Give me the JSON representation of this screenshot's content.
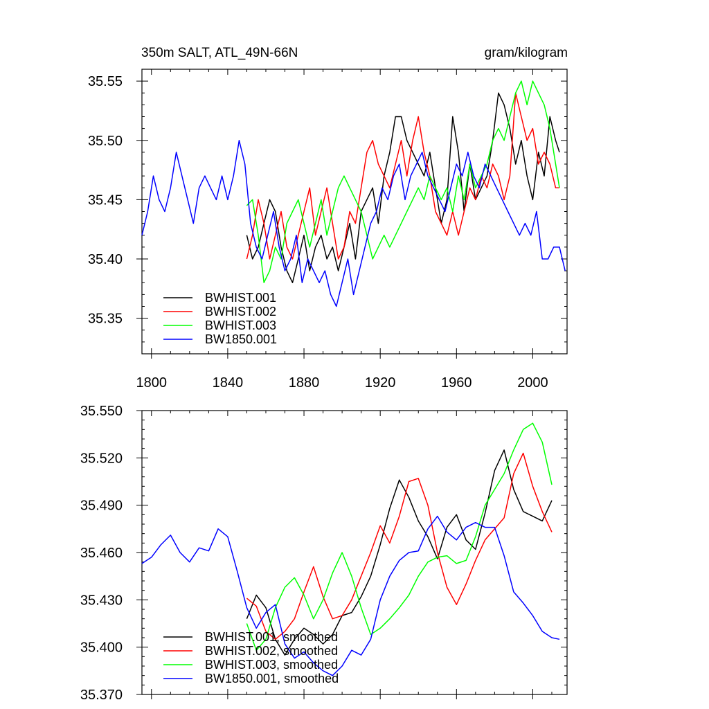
{
  "chart_data": [
    {
      "type": "line",
      "title": "350m SALT, ATL_49N-66N",
      "units": "gram/kilogram",
      "xlim": [
        1795,
        2018
      ],
      "ylim": [
        35.32,
        35.56
      ],
      "xticks": [
        1800,
        1840,
        1880,
        1920,
        1960,
        2000
      ],
      "xtick_labels": [
        "1800",
        "1840",
        "1880",
        "1920",
        "1960",
        "2000"
      ],
      "yticks": [
        35.35,
        35.4,
        35.45,
        35.5,
        35.55
      ],
      "ytick_labels": [
        "35.35",
        "35.40",
        "35.45",
        "35.50",
        "35.55"
      ],
      "legend_position": "bottom-left",
      "series": [
        {
          "name": "BWHIST.001",
          "color": "#000000",
          "x": [
            1850,
            1853,
            1856,
            1859,
            1862,
            1865,
            1868,
            1871,
            1874,
            1877,
            1880,
            1883,
            1886,
            1889,
            1892,
            1895,
            1898,
            1901,
            1904,
            1907,
            1910,
            1913,
            1916,
            1919,
            1922,
            1925,
            1928,
            1931,
            1934,
            1937,
            1940,
            1943,
            1946,
            1949,
            1952,
            1955,
            1958,
            1961,
            1964,
            1967,
            1970,
            1973,
            1976,
            1979,
            1982,
            1985,
            1988,
            1991,
            1994,
            1997,
            2000,
            2003,
            2006,
            2009,
            2012,
            2014
          ],
          "y": [
            35.42,
            35.4,
            35.41,
            35.43,
            35.45,
            35.44,
            35.41,
            35.39,
            35.38,
            35.4,
            35.42,
            35.39,
            35.41,
            35.42,
            35.4,
            35.41,
            35.39,
            35.41,
            35.43,
            35.4,
            35.44,
            35.45,
            35.46,
            35.43,
            35.47,
            35.49,
            35.52,
            35.52,
            35.5,
            35.49,
            35.48,
            35.47,
            35.49,
            35.46,
            35.43,
            35.45,
            35.52,
            35.49,
            35.44,
            35.48,
            35.45,
            35.46,
            35.47,
            35.5,
            35.54,
            35.53,
            35.51,
            35.48,
            35.5,
            35.47,
            35.45,
            35.49,
            35.47,
            35.52,
            35.5,
            35.49
          ]
        },
        {
          "name": "BWHIST.002",
          "color": "#ff0000",
          "x": [
            1850,
            1853,
            1856,
            1859,
            1862,
            1865,
            1868,
            1871,
            1874,
            1877,
            1880,
            1883,
            1886,
            1889,
            1892,
            1895,
            1898,
            1901,
            1904,
            1907,
            1910,
            1913,
            1916,
            1919,
            1922,
            1925,
            1928,
            1931,
            1934,
            1937,
            1940,
            1943,
            1946,
            1949,
            1952,
            1955,
            1958,
            1961,
            1964,
            1967,
            1970,
            1973,
            1976,
            1979,
            1982,
            1985,
            1988,
            1991,
            1994,
            1997,
            2000,
            2003,
            2006,
            2009,
            2012,
            2014
          ],
          "y": [
            35.4,
            35.42,
            35.45,
            35.43,
            35.4,
            35.42,
            35.44,
            35.41,
            35.4,
            35.42,
            35.44,
            35.46,
            35.42,
            35.44,
            35.46,
            35.43,
            35.4,
            35.41,
            35.44,
            35.43,
            35.46,
            35.49,
            35.5,
            35.48,
            35.47,
            35.46,
            35.48,
            35.5,
            35.47,
            35.5,
            35.52,
            35.49,
            35.47,
            35.44,
            35.43,
            35.42,
            35.44,
            35.42,
            35.44,
            35.46,
            35.45,
            35.47,
            35.46,
            35.48,
            35.47,
            35.45,
            35.47,
            35.54,
            35.52,
            35.5,
            35.51,
            35.48,
            35.49,
            35.48,
            35.46,
            35.46
          ]
        },
        {
          "name": "BWHIST.003",
          "color": "#00ff00",
          "x": [
            1850,
            1853,
            1856,
            1859,
            1862,
            1865,
            1868,
            1871,
            1874,
            1877,
            1880,
            1883,
            1886,
            1889,
            1892,
            1895,
            1898,
            1901,
            1904,
            1907,
            1910,
            1913,
            1916,
            1919,
            1922,
            1925,
            1928,
            1931,
            1934,
            1937,
            1940,
            1943,
            1946,
            1949,
            1952,
            1955,
            1958,
            1961,
            1964,
            1967,
            1970,
            1973,
            1976,
            1979,
            1982,
            1985,
            1988,
            1991,
            1994,
            1997,
            2000,
            2003,
            2006,
            2009,
            2012,
            2014
          ],
          "y": [
            35.445,
            35.45,
            35.42,
            35.38,
            35.39,
            35.41,
            35.4,
            35.43,
            35.44,
            35.45,
            35.43,
            35.41,
            35.43,
            35.45,
            35.42,
            35.44,
            35.46,
            35.47,
            35.46,
            35.45,
            35.44,
            35.42,
            35.4,
            35.41,
            35.42,
            35.41,
            35.42,
            35.43,
            35.44,
            35.45,
            35.46,
            35.45,
            35.47,
            35.46,
            35.45,
            35.46,
            35.44,
            35.47,
            35.45,
            35.48,
            35.46,
            35.47,
            35.48,
            35.5,
            35.51,
            35.5,
            35.52,
            35.54,
            35.55,
            35.53,
            35.55,
            35.54,
            35.53,
            35.51,
            35.48,
            35.46
          ]
        },
        {
          "name": "BW1850.001",
          "color": "#0000ff",
          "x": [
            1795,
            1798,
            1801,
            1804,
            1807,
            1810,
            1813,
            1816,
            1819,
            1822,
            1825,
            1828,
            1831,
            1834,
            1837,
            1840,
            1843,
            1846,
            1849,
            1852,
            1855,
            1858,
            1861,
            1864,
            1867,
            1870,
            1873,
            1876,
            1879,
            1882,
            1885,
            1888,
            1891,
            1894,
            1897,
            1900,
            1903,
            1906,
            1909,
            1912,
            1915,
            1918,
            1921,
            1924,
            1927,
            1930,
            1933,
            1936,
            1939,
            1942,
            1945,
            1948,
            1951,
            1954,
            1957,
            1960,
            1963,
            1966,
            1969,
            1972,
            1975,
            1978,
            1981,
            1984,
            1987,
            1990,
            1993,
            1996,
            1999,
            2002,
            2005,
            2008,
            2011,
            2014,
            2017
          ],
          "y": [
            35.42,
            35.44,
            35.47,
            35.45,
            35.44,
            35.46,
            35.49,
            35.47,
            35.45,
            35.43,
            35.46,
            35.47,
            35.46,
            35.45,
            35.47,
            35.45,
            35.47,
            35.5,
            35.48,
            35.43,
            35.41,
            35.4,
            35.42,
            35.44,
            35.41,
            35.39,
            35.4,
            35.42,
            35.38,
            35.4,
            35.39,
            35.38,
            35.39,
            35.37,
            35.36,
            35.38,
            35.4,
            35.37,
            35.39,
            35.41,
            35.43,
            35.44,
            35.46,
            35.45,
            35.47,
            35.48,
            35.45,
            35.47,
            35.48,
            35.49,
            35.47,
            35.46,
            35.45,
            35.44,
            35.46,
            35.48,
            35.47,
            35.49,
            35.47,
            35.46,
            35.48,
            35.47,
            35.46,
            35.45,
            35.44,
            35.43,
            35.42,
            35.43,
            35.42,
            35.44,
            35.4,
            35.4,
            35.41,
            35.41,
            35.39
          ]
        }
      ]
    },
    {
      "type": "line",
      "xlim": [
        1795,
        2018
      ],
      "ylim": [
        35.37,
        35.55
      ],
      "xticks": [
        1800,
        1840,
        1880,
        1920,
        1960,
        2000
      ],
      "yticks": [
        35.37,
        35.4,
        35.43,
        35.46,
        35.49,
        35.52,
        35.55
      ],
      "ytick_labels": [
        "35.370",
        "35.400",
        "35.430",
        "35.460",
        "35.490",
        "35.520",
        "35.550"
      ],
      "legend_position": "bottom-left",
      "series": [
        {
          "name": "BWHIST.001, smoothed",
          "color": "#000000",
          "x": [
            1850,
            1855,
            1860,
            1865,
            1870,
            1875,
            1880,
            1885,
            1890,
            1895,
            1900,
            1905,
            1910,
            1915,
            1920,
            1925,
            1930,
            1935,
            1940,
            1945,
            1950,
            1955,
            1960,
            1965,
            1970,
            1975,
            1980,
            1985,
            1990,
            1995,
            2000,
            2005,
            2010
          ],
          "y": [
            35.418,
            35.433,
            35.425,
            35.405,
            35.395,
            35.405,
            35.412,
            35.408,
            35.402,
            35.408,
            35.42,
            35.422,
            35.432,
            35.445,
            35.465,
            35.488,
            35.506,
            35.495,
            35.48,
            35.47,
            35.456,
            35.476,
            35.484,
            35.468,
            35.462,
            35.485,
            35.512,
            35.525,
            35.5,
            35.486,
            35.483,
            35.48,
            35.493
          ]
        },
        {
          "name": "BWHIST.002, smoothed",
          "color": "#ff0000",
          "x": [
            1850,
            1855,
            1860,
            1865,
            1870,
            1875,
            1880,
            1885,
            1890,
            1895,
            1900,
            1905,
            1910,
            1915,
            1920,
            1925,
            1930,
            1935,
            1940,
            1945,
            1950,
            1955,
            1960,
            1965,
            1970,
            1975,
            1980,
            1985,
            1990,
            1995,
            2000,
            2005,
            2010
          ],
          "y": [
            35.431,
            35.426,
            35.41,
            35.405,
            35.41,
            35.418,
            35.435,
            35.451,
            35.432,
            35.418,
            35.42,
            35.43,
            35.445,
            35.46,
            35.477,
            35.466,
            35.483,
            35.505,
            35.507,
            35.49,
            35.46,
            35.438,
            35.427,
            35.44,
            35.455,
            35.468,
            35.475,
            35.482,
            35.51,
            35.523,
            35.502,
            35.486,
            35.473
          ]
        },
        {
          "name": "BWHIST.003, smoothed",
          "color": "#00ff00",
          "x": [
            1850,
            1855,
            1860,
            1865,
            1870,
            1875,
            1880,
            1885,
            1890,
            1895,
            1900,
            1905,
            1910,
            1915,
            1920,
            1925,
            1930,
            1935,
            1940,
            1945,
            1950,
            1955,
            1960,
            1965,
            1970,
            1975,
            1980,
            1985,
            1990,
            1995,
            2000,
            2005,
            2010
          ],
          "y": [
            35.415,
            35.398,
            35.405,
            35.425,
            35.438,
            35.444,
            35.433,
            35.418,
            35.43,
            35.447,
            35.46,
            35.445,
            35.425,
            35.408,
            35.412,
            35.418,
            35.425,
            35.433,
            35.445,
            35.454,
            35.457,
            35.458,
            35.453,
            35.455,
            35.47,
            35.49,
            35.5,
            35.51,
            35.525,
            35.538,
            35.542,
            35.53,
            35.503
          ]
        },
        {
          "name": "BW1850.001, smoothed",
          "color": "#0000ff",
          "x": [
            1795,
            1800,
            1805,
            1810,
            1815,
            1820,
            1825,
            1830,
            1835,
            1840,
            1845,
            1850,
            1855,
            1860,
            1865,
            1870,
            1875,
            1880,
            1885,
            1890,
            1895,
            1900,
            1905,
            1910,
            1915,
            1920,
            1925,
            1930,
            1935,
            1940,
            1945,
            1950,
            1955,
            1960,
            1965,
            1970,
            1975,
            1980,
            1985,
            1990,
            1995,
            2000,
            2005,
            2010,
            2014
          ],
          "y": [
            35.453,
            35.457,
            35.465,
            35.471,
            35.46,
            35.454,
            35.463,
            35.461,
            35.475,
            35.47,
            35.448,
            35.425,
            35.412,
            35.422,
            35.427,
            35.402,
            35.393,
            35.397,
            35.39,
            35.385,
            35.382,
            35.388,
            35.398,
            35.395,
            35.405,
            35.43,
            35.445,
            35.455,
            35.46,
            35.461,
            35.475,
            35.483,
            35.473,
            35.468,
            35.476,
            35.479,
            35.476,
            35.476,
            35.458,
            35.435,
            35.428,
            35.42,
            35.41,
            35.406,
            35.405
          ]
        }
      ]
    }
  ]
}
